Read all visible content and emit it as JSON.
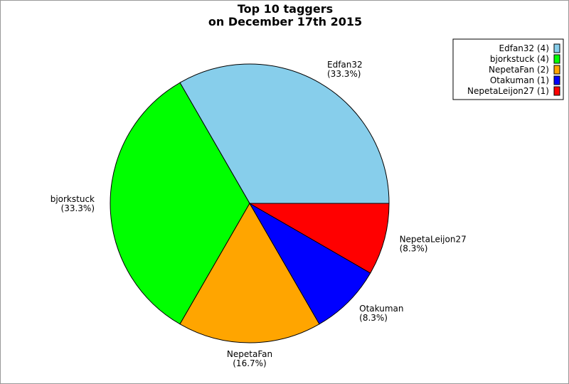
{
  "chart_data": {
    "type": "pie",
    "title": "Top 10 taggers",
    "subtitle": "on December 17th 2015",
    "start_angle_deg": 0,
    "direction": "counterclockwise",
    "legend_position": "top-right",
    "slices": [
      {
        "label": "Edfan32",
        "value": 4,
        "percent": "(33.3%)",
        "legend": "Edfan32 (4)",
        "color": "#87ceeb"
      },
      {
        "label": "bjorkstuck",
        "value": 4,
        "percent": "(33.3%)",
        "legend": "bjorkstuck (4)",
        "color": "#00ff00"
      },
      {
        "label": "NepetaFan",
        "value": 2,
        "percent": "(16.7%)",
        "legend": "NepetaFan (2)",
        "color": "#ffa500"
      },
      {
        "label": "Otakuman",
        "value": 1,
        "percent": "(8.3%)",
        "legend": "Otakuman (1)",
        "color": "#0000ff"
      },
      {
        "label": "NepetaLeijon27",
        "value": 1,
        "percent": "(8.3%)",
        "legend": "NepetaLeijon27 (1)",
        "color": "#ff0000"
      }
    ]
  }
}
